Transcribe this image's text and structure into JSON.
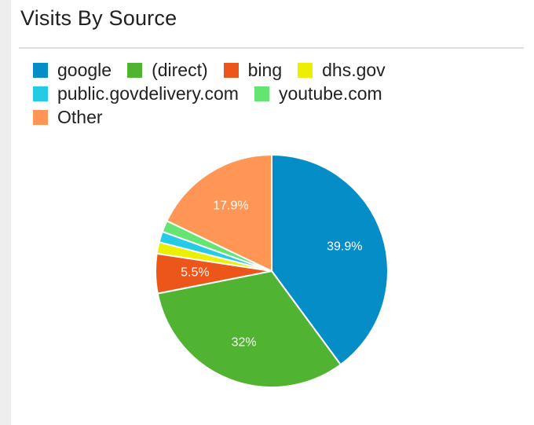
{
  "widget": {
    "title": "Visits By Source"
  },
  "chart_data": {
    "type": "pie",
    "title": "Visits By Source",
    "legend_position": "top",
    "labels": [
      "google",
      "(direct)",
      "bing",
      "dhs.gov",
      "public.govdelivery.com",
      "youtube.com",
      "Other"
    ],
    "values": [
      39.9,
      32.0,
      5.5,
      1.6,
      1.5,
      1.6,
      17.9
    ],
    "data_labels": [
      "39.9%",
      "32%",
      "5.5%",
      "",
      "",
      "",
      "17.9%"
    ],
    "colors": [
      "#058DC7",
      "#50B432",
      "#ED561B",
      "#EDEF00",
      "#24CBE5",
      "#64E572",
      "#FF9655"
    ]
  }
}
